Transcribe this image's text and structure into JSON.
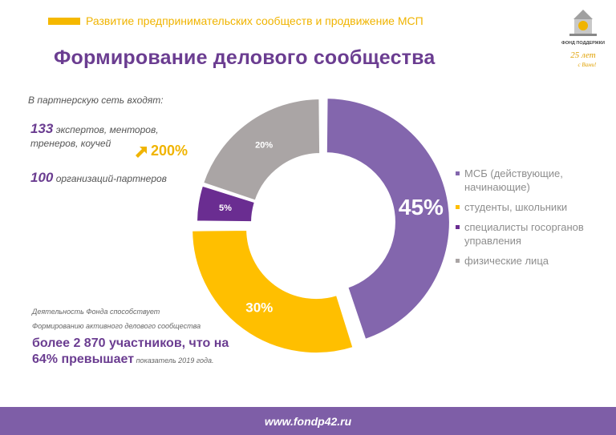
{
  "header": {
    "section_title": "Развитие предпринимательских сообществ и продвижение МСП",
    "main_title": "Формирование делового сообщества"
  },
  "logo": {
    "org_name": "ФОНД ПОДДЕРЖКИ",
    "anniversary_line1": "25 лет",
    "anniversary_line2": "с Вами!"
  },
  "stats": {
    "intro": "В партнерскую сеть входят:",
    "experts_count": "133",
    "experts_text": " экспертов, менторов, тренеров, коучей",
    "growth": "200%",
    "partners_count": "100",
    "partners_text": " организаций-партнеров"
  },
  "chart_data": {
    "type": "pie",
    "categories": [
      "МСБ (действующие, начинающие)",
      "студенты, школьники",
      "специалисты госорганов управления",
      "физические лица"
    ],
    "values": [
      45,
      30,
      5,
      20
    ],
    "labels": [
      "45%",
      "30%",
      "5%",
      "20%"
    ],
    "colors": [
      "#8366ad",
      "#ffbf00",
      "#6a2d91",
      "#aaa5a5"
    ],
    "donut": true,
    "exploded": true,
    "legend_position": "right"
  },
  "bottom": {
    "note_line1": "Деятельность Фонда способствует",
    "note_line2": "Формированию активного делового сообщества",
    "highlight": "более 2 870 участников, что на 64% превышает",
    "note_tail": " показатель 2019 года."
  },
  "footer": {
    "url": "www.fondp42.ru"
  }
}
